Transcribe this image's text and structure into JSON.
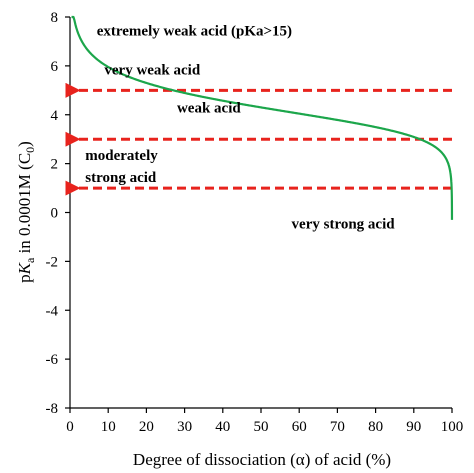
{
  "chart_data": {
    "type": "line",
    "xlabel": "Degree of dissociation (α) of acid (%)",
    "ylabel_parts": {
      "prefix": "p",
      "k": "K",
      "a": "a",
      "middle": " in 0.0001M (C",
      "zero": "0",
      "close": ")"
    },
    "xlim": [
      0,
      100
    ],
    "ylim": [
      -8,
      8
    ],
    "x_ticks": [
      0,
      10,
      20,
      30,
      40,
      50,
      60,
      70,
      80,
      90,
      100
    ],
    "y_ticks": [
      -8,
      -6,
      -4,
      -2,
      0,
      2,
      4,
      6,
      8
    ],
    "grid": false,
    "concentration": 0.0001,
    "series": [
      {
        "color": "#1ca64b",
        "x_range": [
          0.4,
          99.995
        ]
      }
    ],
    "reference_arrows": [
      {
        "y": 5,
        "color": "#e8231d"
      },
      {
        "y": 3,
        "color": "#e8231d"
      },
      {
        "y": 1,
        "color": "#e8231d"
      }
    ],
    "annotations": [
      {
        "text": "extremely weak acid (pKa>15)",
        "x": 7,
        "y": 7.25
      },
      {
        "text": "very weak acid",
        "x": 9,
        "y": 5.65
      },
      {
        "text": "weak acid",
        "x": 28,
        "y": 4.1
      },
      {
        "text": "moderately",
        "x": 4,
        "y": 2.15
      },
      {
        "text": "strong acid",
        "x": 4,
        "y": 1.25
      },
      {
        "text": "very strong acid",
        "x": 58,
        "y": -0.65
      }
    ]
  }
}
